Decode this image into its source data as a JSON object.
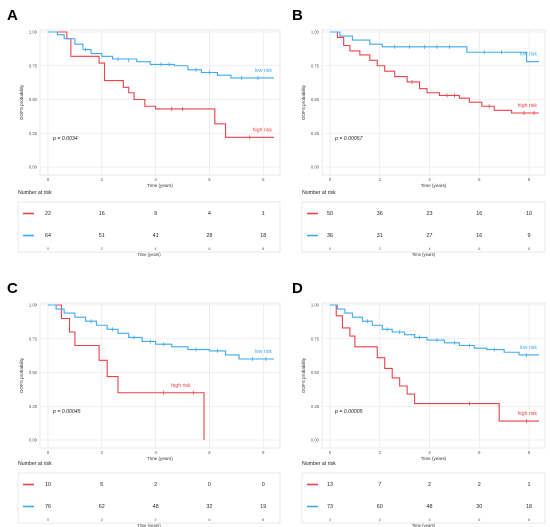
{
  "figure": {
    "colors": {
      "high_risk": "#e8424b",
      "low_risk": "#3ea9f0",
      "grid": "#e3e3e3",
      "axis_text": "#555555"
    },
    "common": {
      "ylabel": "OOFS probability",
      "xlabel": "Time (years)",
      "y_ticks": [
        "0.00",
        "0.25",
        "0.50",
        "0.75",
        "1.00"
      ],
      "x_ticks": [
        "0",
        "2",
        "4",
        "6",
        "8"
      ],
      "risk_table_title": "Number at risk"
    }
  },
  "chart_data": [
    {
      "panel": "A",
      "type": "line",
      "chart_kind": "kaplan-meier step",
      "xlim": [
        0,
        8.4
      ],
      "ylim": [
        0,
        1
      ],
      "grid": true,
      "p_value": "p = 0.0034",
      "risk_times": [
        0,
        2,
        4,
        6,
        8
      ],
      "series": [
        {
          "name": "high risk",
          "color": "#e8424b",
          "steps": [
            [
              0,
              1
            ],
            [
              0.7,
              0.95
            ],
            [
              0.85,
              0.82
            ],
            [
              1.9,
              0.77
            ],
            [
              2.1,
              0.64
            ],
            [
              2.8,
              0.59
            ],
            [
              3.0,
              0.55
            ],
            [
              3.2,
              0.5
            ],
            [
              3.6,
              0.45
            ],
            [
              4.0,
              0.43
            ],
            [
              5.5,
              0.43
            ],
            [
              6.2,
              0.32
            ],
            [
              6.6,
              0.22
            ],
            [
              8.4,
              0.22
            ]
          ],
          "censor": [
            [
              4.6,
              0.43
            ],
            [
              5.0,
              0.43
            ],
            [
              7.5,
              0.22
            ]
          ],
          "at_risk": [
            "22",
            "16",
            "9",
            "4",
            "1"
          ]
        },
        {
          "name": "low risk",
          "color": "#3ea9f0",
          "steps": [
            [
              0,
              1
            ],
            [
              0.35,
              0.98
            ],
            [
              0.6,
              0.95
            ],
            [
              1.0,
              0.91
            ],
            [
              1.3,
              0.87
            ],
            [
              1.6,
              0.84
            ],
            [
              2.0,
              0.82
            ],
            [
              2.4,
              0.8
            ],
            [
              3.3,
              0.78
            ],
            [
              3.8,
              0.76
            ],
            [
              4.7,
              0.75
            ],
            [
              5.2,
              0.72
            ],
            [
              5.7,
              0.7
            ],
            [
              6.3,
              0.68
            ],
            [
              6.8,
              0.66
            ],
            [
              8.4,
              0.66
            ]
          ],
          "censor": [
            [
              1.4,
              0.87
            ],
            [
              2.6,
              0.8
            ],
            [
              3.0,
              0.79
            ],
            [
              4.2,
              0.76
            ],
            [
              4.5,
              0.76
            ],
            [
              5.5,
              0.72
            ],
            [
              6.0,
              0.7
            ],
            [
              7.2,
              0.66
            ],
            [
              7.8,
              0.66
            ]
          ],
          "at_risk": [
            "64",
            "51",
            "41",
            "28",
            "18"
          ]
        }
      ]
    },
    {
      "panel": "B",
      "type": "line",
      "chart_kind": "kaplan-meier step",
      "xlim": [
        0,
        8.4
      ],
      "ylim": [
        0,
        1
      ],
      "grid": true,
      "p_value": "p = 0.00057",
      "risk_times": [
        0,
        2,
        4,
        6,
        8
      ],
      "series": [
        {
          "name": "high risk",
          "color": "#e8424b",
          "steps": [
            [
              0,
              1
            ],
            [
              0.3,
              0.96
            ],
            [
              0.55,
              0.9
            ],
            [
              0.8,
              0.86
            ],
            [
              1.2,
              0.83
            ],
            [
              1.6,
              0.79
            ],
            [
              1.9,
              0.75
            ],
            [
              2.2,
              0.71
            ],
            [
              2.6,
              0.67
            ],
            [
              3.1,
              0.63
            ],
            [
              3.6,
              0.58
            ],
            [
              3.9,
              0.55
            ],
            [
              4.4,
              0.53
            ],
            [
              5.2,
              0.51
            ],
            [
              5.6,
              0.48
            ],
            [
              6.1,
              0.45
            ],
            [
              6.6,
              0.42
            ],
            [
              7.3,
              0.4
            ],
            [
              8.4,
              0.4
            ]
          ],
          "censor": [
            [
              3.3,
              0.63
            ],
            [
              4.7,
              0.53
            ],
            [
              5.0,
              0.53
            ],
            [
              6.4,
              0.45
            ],
            [
              7.8,
              0.4
            ],
            [
              8.2,
              0.4
            ]
          ],
          "at_risk": [
            "50",
            "36",
            "23",
            "16",
            "10"
          ]
        },
        {
          "name": "low risk",
          "color": "#3ea9f0",
          "steps": [
            [
              0,
              1
            ],
            [
              0.4,
              0.97
            ],
            [
              0.9,
              0.94
            ],
            [
              1.6,
              0.91
            ],
            [
              2.1,
              0.89
            ],
            [
              5.5,
              0.85
            ],
            [
              7.9,
              0.78
            ],
            [
              8.4,
              0.78
            ]
          ],
          "censor": [
            [
              2.6,
              0.89
            ],
            [
              3.2,
              0.89
            ],
            [
              3.8,
              0.89
            ],
            [
              4.3,
              0.89
            ],
            [
              4.8,
              0.89
            ],
            [
              6.2,
              0.85
            ],
            [
              6.9,
              0.85
            ]
          ],
          "at_risk": [
            "36",
            "31",
            "27",
            "16",
            "9"
          ]
        }
      ]
    },
    {
      "panel": "C",
      "type": "line",
      "chart_kind": "kaplan-meier step",
      "xlim": [
        0,
        8.4
      ],
      "ylim": [
        0,
        1
      ],
      "grid": true,
      "p_value": "p = 0.00045",
      "risk_times": [
        0,
        2,
        4,
        6,
        8
      ],
      "series": [
        {
          "name": "high risk",
          "color": "#e8424b",
          "steps": [
            [
              0,
              1
            ],
            [
              0.5,
              0.9
            ],
            [
              0.8,
              0.8
            ],
            [
              1.0,
              0.7
            ],
            [
              1.9,
              0.59
            ],
            [
              2.2,
              0.47
            ],
            [
              2.6,
              0.35
            ],
            [
              5.8,
              0.35
            ],
            [
              5.8,
              0.0
            ]
          ],
          "censor": [
            [
              4.3,
              0.35
            ],
            [
              5.4,
              0.35
            ]
          ],
          "at_risk": [
            "10",
            "5",
            "2",
            "0",
            "0"
          ]
        },
        {
          "name": "low risk",
          "color": "#3ea9f0",
          "steps": [
            [
              0,
              1
            ],
            [
              0.3,
              0.97
            ],
            [
              0.6,
              0.94
            ],
            [
              1.0,
              0.91
            ],
            [
              1.4,
              0.88
            ],
            [
              1.8,
              0.85
            ],
            [
              2.2,
              0.82
            ],
            [
              2.6,
              0.79
            ],
            [
              3.0,
              0.76
            ],
            [
              3.5,
              0.73
            ],
            [
              4.0,
              0.71
            ],
            [
              4.6,
              0.69
            ],
            [
              5.2,
              0.67
            ],
            [
              6.0,
              0.66
            ],
            [
              6.6,
              0.63
            ],
            [
              7.1,
              0.6
            ],
            [
              8.4,
              0.6
            ]
          ],
          "censor": [
            [
              1.6,
              0.88
            ],
            [
              2.4,
              0.82
            ],
            [
              3.2,
              0.76
            ],
            [
              3.8,
              0.73
            ],
            [
              4.3,
              0.71
            ],
            [
              5.5,
              0.67
            ],
            [
              6.3,
              0.66
            ],
            [
              7.6,
              0.6
            ],
            [
              8.1,
              0.6
            ]
          ],
          "at_risk": [
            "76",
            "62",
            "48",
            "32",
            "19"
          ]
        }
      ]
    },
    {
      "panel": "D",
      "type": "line",
      "chart_kind": "kaplan-meier step",
      "xlim": [
        0,
        8.4
      ],
      "ylim": [
        0,
        1
      ],
      "grid": true,
      "p_value": "p = 0.00005",
      "risk_times": [
        0,
        2,
        4,
        6,
        8
      ],
      "series": [
        {
          "name": "high risk",
          "color": "#e8424b",
          "steps": [
            [
              0,
              1
            ],
            [
              0.25,
              0.92
            ],
            [
              0.5,
              0.83
            ],
            [
              0.8,
              0.77
            ],
            [
              1.0,
              0.69
            ],
            [
              1.9,
              0.61
            ],
            [
              2.2,
              0.53
            ],
            [
              2.5,
              0.46
            ],
            [
              2.8,
              0.4
            ],
            [
              3.1,
              0.34
            ],
            [
              3.4,
              0.27
            ],
            [
              6.8,
              0.27
            ],
            [
              6.8,
              0.14
            ],
            [
              8.4,
              0.14
            ]
          ],
          "censor": [
            [
              5.6,
              0.27
            ],
            [
              7.9,
              0.14
            ]
          ],
          "at_risk": [
            "13",
            "7",
            "2",
            "2",
            "1"
          ]
        },
        {
          "name": "low risk",
          "color": "#3ea9f0",
          "steps": [
            [
              0,
              1
            ],
            [
              0.3,
              0.97
            ],
            [
              0.6,
              0.94
            ],
            [
              0.9,
              0.91
            ],
            [
              1.3,
              0.88
            ],
            [
              1.7,
              0.85
            ],
            [
              2.1,
              0.82
            ],
            [
              2.5,
              0.8
            ],
            [
              3.0,
              0.78
            ],
            [
              3.4,
              0.76
            ],
            [
              3.9,
              0.74
            ],
            [
              4.6,
              0.72
            ],
            [
              5.2,
              0.7
            ],
            [
              5.8,
              0.68
            ],
            [
              6.3,
              0.67
            ],
            [
              7.0,
              0.65
            ],
            [
              7.6,
              0.63
            ],
            [
              8.4,
              0.63
            ]
          ],
          "censor": [
            [
              1.5,
              0.88
            ],
            [
              2.3,
              0.82
            ],
            [
              2.8,
              0.8
            ],
            [
              3.6,
              0.76
            ],
            [
              4.3,
              0.74
            ],
            [
              5.0,
              0.72
            ],
            [
              5.6,
              0.7
            ],
            [
              6.6,
              0.67
            ],
            [
              7.9,
              0.63
            ]
          ],
          "at_risk": [
            "73",
            "60",
            "48",
            "30",
            "18"
          ]
        }
      ]
    }
  ]
}
